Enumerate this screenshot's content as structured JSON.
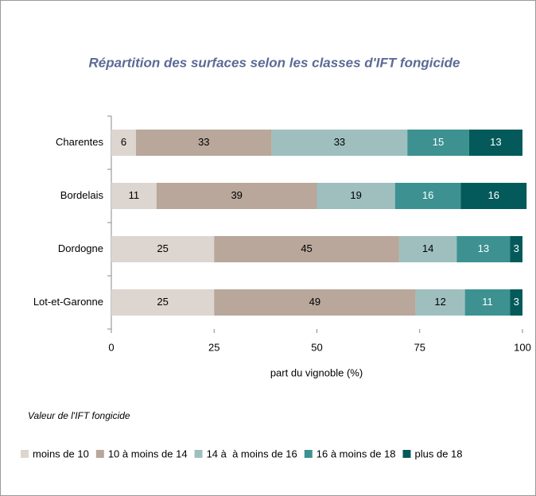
{
  "chart_data": {
    "type": "stacked-barh",
    "title": "Répartition des surfaces selon les classes d'IFT fongicide",
    "xlabel": "part du vignoble (%)",
    "legend_title": "Valeur de l'IFT fongicide",
    "categories": [
      "Charentes",
      "Bordelais",
      "Dordogne",
      "Lot-et-Garonne"
    ],
    "series": [
      {
        "name": "moins de 10",
        "color": "#ddd5cf",
        "values": [
          6,
          11,
          25,
          25
        ]
      },
      {
        "name": "10 à moins de 14",
        "color": "#b8a79a",
        "values": [
          33,
          39,
          45,
          49
        ]
      },
      {
        "name": "14 à  à moins de 16",
        "color": "#9fbfbf",
        "values": [
          33,
          19,
          14,
          12
        ]
      },
      {
        "name": "16 à moins de 18",
        "color": "#3d9191",
        "values": [
          15,
          16,
          13,
          11
        ]
      },
      {
        "name": "plus de 18",
        "color": "#045a5a",
        "values": [
          13,
          16,
          3,
          3
        ]
      }
    ],
    "xlim": [
      0,
      100
    ],
    "xticks": [
      0,
      25,
      50,
      75,
      100
    ],
    "legend": "bottom"
  }
}
